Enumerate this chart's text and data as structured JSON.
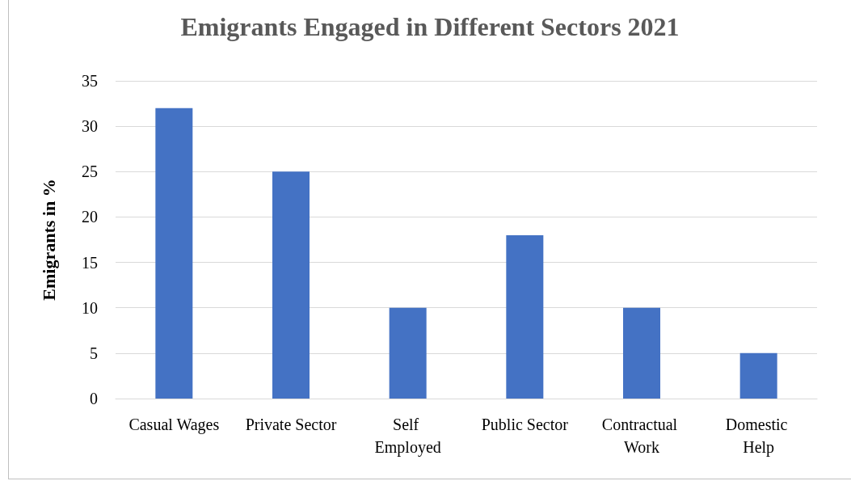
{
  "chart_data": {
    "type": "bar",
    "title": "Emigrants Engaged in Different Sectors 2021",
    "ylabel": "Emigrants in %",
    "categories": [
      "Casual Wages",
      "Private Sector",
      "Self Employed",
      "Public Sector",
      "Contractual Work",
      "Domestic Help"
    ],
    "values": [
      32,
      25,
      10,
      18,
      10,
      5
    ],
    "color": "#4472c4",
    "ylim": [
      0,
      35
    ],
    "yticks": [
      0,
      5,
      10,
      15,
      20,
      25,
      30,
      35
    ],
    "grid": "y"
  }
}
